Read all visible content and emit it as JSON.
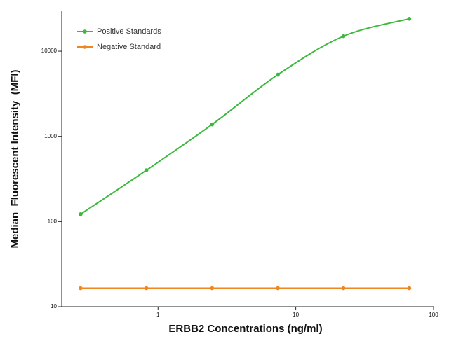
{
  "chart_data": {
    "type": "line",
    "xlabel": "ERBB2 Concentrations (ng/ml)",
    "ylabel": "Median  Fluorescent Intensity  (MFI)",
    "x": [
      0.274,
      0.823,
      2.47,
      7.41,
      22.2,
      66.7
    ],
    "series": [
      {
        "name": "Positive Standards",
        "color": "#3cb93c",
        "values": [
          122,
          400,
          1380,
          5300,
          15000,
          24000
        ]
      },
      {
        "name": "Negative Standard",
        "color": "#f0861e",
        "values": [
          16.5,
          16.5,
          16.5,
          16.5,
          16.5,
          16.5
        ]
      }
    ],
    "xscale": "log",
    "yscale": "log",
    "xlim": [
      0.2,
      100
    ],
    "ylim": [
      10,
      30000
    ],
    "xticks": [
      1,
      10,
      100
    ],
    "yticks": [
      10,
      100,
      1000,
      10000
    ],
    "legend": "upper left"
  }
}
